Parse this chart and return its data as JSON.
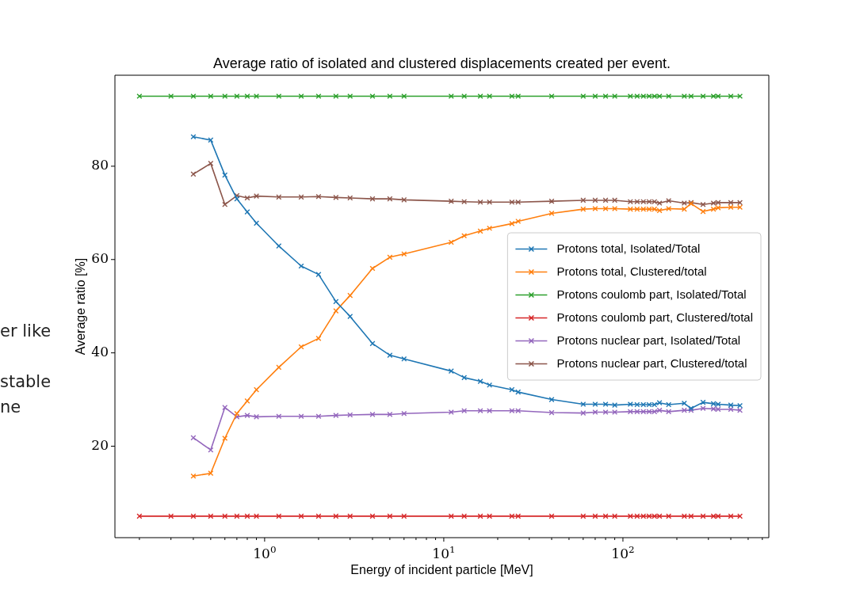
{
  "chart_data": {
    "type": "line",
    "title": "Average ratio of isolated and clustered displacements created per event.",
    "xlabel": "Energy of incident particle [MeV]",
    "ylabel": "Average ratio [%]",
    "annotations": [
      "er like",
      "stable",
      "ne"
    ],
    "log": "x",
    "grid": false,
    "legend": "right",
    "marker": "cross",
    "line_style": "solid",
    "xlim": [
      0.146,
      652
    ],
    "ylim": [
      0.4,
      99.5
    ],
    "xticks": [
      {
        "value": 0.2,
        "label": null
      },
      {
        "value": 0.3,
        "label": null
      },
      {
        "value": 0.4,
        "label": null
      },
      {
        "value": 0.5,
        "label": null
      },
      {
        "value": 0.6,
        "label": null
      },
      {
        "value": 0.7,
        "label": null
      },
      {
        "value": 0.8,
        "label": null
      },
      {
        "value": 0.9,
        "label": null
      },
      {
        "value": 1,
        "label": "10$^{0}$"
      },
      {
        "value": 2,
        "label": null
      },
      {
        "value": 3,
        "label": null
      },
      {
        "value": 4,
        "label": null
      },
      {
        "value": 5,
        "label": null
      },
      {
        "value": 6,
        "label": null
      },
      {
        "value": 7,
        "label": null
      },
      {
        "value": 8,
        "label": null
      },
      {
        "value": 9,
        "label": null
      },
      {
        "value": 10,
        "label": "10$^{1}$"
      },
      {
        "value": 20,
        "label": null
      },
      {
        "value": 30,
        "label": null
      },
      {
        "value": 40,
        "label": null
      },
      {
        "value": 50,
        "label": null
      },
      {
        "value": 60,
        "label": null
      },
      {
        "value": 70,
        "label": null
      },
      {
        "value": 80,
        "label": null
      },
      {
        "value": 90,
        "label": null
      },
      {
        "value": 100,
        "label": "10$^{2}$"
      },
      {
        "value": 200,
        "label": null
      },
      {
        "value": 300,
        "label": null
      },
      {
        "value": 400,
        "label": null
      },
      {
        "value": 500,
        "label": null
      },
      {
        "value": 600,
        "label": null
      }
    ],
    "yticks": [
      20,
      40,
      60,
      80
    ],
    "x": [
      0.2,
      0.3,
      0.4,
      0.5,
      0.6,
      0.7,
      0.8,
      0.9,
      1.2,
      1.6,
      2,
      2.5,
      3,
      4,
      5,
      6,
      11,
      13,
      16,
      18,
      24,
      26,
      40,
      60,
      70,
      80,
      90,
      110,
      120,
      130,
      140,
      150,
      160,
      180,
      220,
      240,
      280,
      320,
      340,
      400,
      450
    ],
    "series": [
      {
        "name": "Protons total, Isolated/Total",
        "color": "#1f77b4",
        "values": [
          null,
          null,
          86.3,
          85.6,
          78.1,
          73.0,
          70.2,
          67.8,
          62.9,
          58.6,
          56.8,
          51.0,
          47.8,
          42.0,
          39.5,
          38.7,
          36.1,
          34.7,
          33.9,
          33.1,
          32.1,
          31.6,
          30.0,
          29.0,
          29.0,
          29.0,
          28.8,
          29.0,
          28.9,
          28.9,
          28.9,
          28.9,
          29.3,
          28.9,
          29.2,
          28.1,
          29.4,
          29.1,
          29.0,
          28.8,
          28.7
        ]
      },
      {
        "name": "Protons total, Clustered/total",
        "color": "#ff7f0e",
        "values": [
          null,
          null,
          13.6,
          14.2,
          21.7,
          27.0,
          29.7,
          32.1,
          36.9,
          41.3,
          43.1,
          49.0,
          52.3,
          58.1,
          60.5,
          61.2,
          63.7,
          65.1,
          66.1,
          66.7,
          67.7,
          68.2,
          69.9,
          70.8,
          70.9,
          70.9,
          70.9,
          70.8,
          70.8,
          70.8,
          70.8,
          70.8,
          70.5,
          70.9,
          70.8,
          72.0,
          70.3,
          70.8,
          71.1,
          71.2,
          71.2
        ]
      },
      {
        "name": "Protons coulomb part, Isolated/Total",
        "color": "#2ca02c",
        "values": [
          95,
          95,
          95,
          95,
          95,
          95,
          95,
          95,
          95,
          95,
          95,
          95,
          95,
          95,
          95,
          95,
          95,
          95,
          95,
          95,
          95,
          95,
          95,
          95,
          95,
          95,
          95,
          95,
          95,
          95,
          95,
          95,
          95,
          95,
          95,
          95,
          95,
          95,
          95,
          95,
          95
        ]
      },
      {
        "name": "Protons coulomb part, Clustered/total",
        "color": "#d62728",
        "values": [
          5,
          5,
          5,
          5,
          5,
          5,
          5,
          5,
          5,
          5,
          5,
          5,
          5,
          5,
          5,
          5,
          5,
          5,
          5,
          5,
          5,
          5,
          5,
          5,
          5,
          5,
          5,
          5,
          5,
          5,
          5,
          5,
          5,
          5,
          5,
          5,
          5,
          5,
          5,
          5,
          5
        ]
      },
      {
        "name": "Protons nuclear part, Isolated/Total",
        "color": "#9467bd",
        "values": [
          null,
          null,
          21.8,
          19.2,
          28.3,
          26.3,
          26.6,
          26.3,
          26.4,
          26.4,
          26.4,
          26.6,
          26.7,
          26.8,
          26.8,
          27.0,
          27.3,
          27.6,
          27.6,
          27.6,
          27.6,
          27.6,
          27.2,
          27.1,
          27.3,
          27.3,
          27.3,
          27.4,
          27.4,
          27.4,
          27.4,
          27.4,
          27.7,
          27.4,
          27.7,
          27.7,
          28.1,
          28.0,
          27.9,
          27.9,
          27.7
        ]
      },
      {
        "name": "Protons nuclear part, Clustered/total",
        "color": "#8c564b",
        "values": [
          null,
          null,
          78.3,
          80.6,
          71.8,
          73.7,
          73.2,
          73.6,
          73.4,
          73.4,
          73.5,
          73.3,
          73.2,
          73.0,
          73.0,
          72.8,
          72.5,
          72.4,
          72.3,
          72.3,
          72.3,
          72.3,
          72.5,
          72.7,
          72.7,
          72.7,
          72.7,
          72.4,
          72.4,
          72.4,
          72.4,
          72.4,
          72.1,
          72.6,
          72.1,
          72.2,
          71.8,
          72.1,
          72.2,
          72.2,
          72.2
        ]
      }
    ]
  }
}
